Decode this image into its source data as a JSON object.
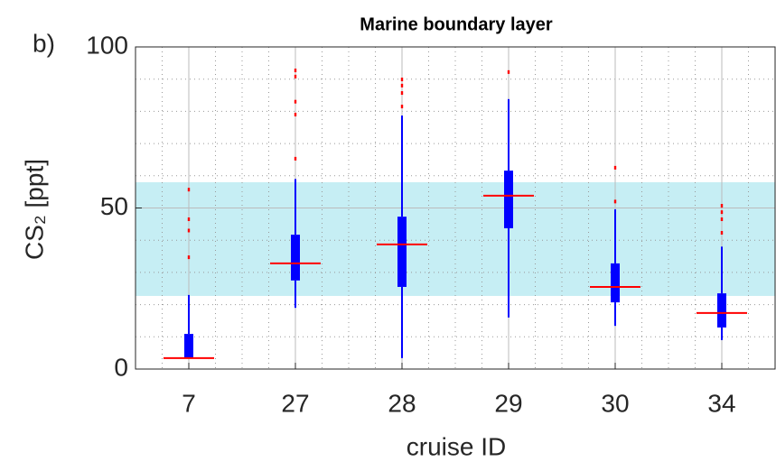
{
  "chart_data": {
    "type": "box",
    "panel_label": "b)",
    "title": "Marine boundary layer",
    "xlabel": "cruise ID",
    "ylabel": "CS₂ [ppt]",
    "categories": [
      "7",
      "27",
      "28",
      "29",
      "30",
      "34"
    ],
    "boxes": [
      {
        "whisker_low": 3.4,
        "q1": 3.4,
        "median": 3.4,
        "q3": 10.9,
        "whisker_high": 23,
        "outliers": [
          34.7,
          43,
          46.5,
          55.7
        ]
      },
      {
        "whisker_low": 19,
        "q1": 27.5,
        "median": 32.8,
        "q3": 41.7,
        "whisker_high": 59,
        "outliers": [
          65.3,
          79,
          83,
          90.8,
          92.7
        ]
      },
      {
        "whisker_low": 3.4,
        "q1": 25.5,
        "median": 38.7,
        "q3": 47.3,
        "whisker_high": 78.7,
        "outliers": [
          81.5,
          85.7,
          88,
          89.9
        ]
      },
      {
        "whisker_low": 16,
        "q1": 43.7,
        "median": 53.8,
        "q3": 61.6,
        "whisker_high": 83.8,
        "outliers": [
          92.2
        ]
      },
      {
        "whisker_low": 13.4,
        "q1": 20.7,
        "median": 25.5,
        "q3": 32.8,
        "whisker_high": 49.6,
        "outliers": [
          52,
          62.5
        ]
      },
      {
        "whisker_low": 9,
        "q1": 12.9,
        "median": 17.4,
        "q3": 23.5,
        "whisker_high": 38,
        "outliers": [
          42.3,
          46.5,
          48.7,
          50.7
        ]
      }
    ],
    "box_color": "#0000ff",
    "median_color": "#ff0000",
    "outlier_color": "#ff0000",
    "shaded_range": [
      22.7,
      58
    ],
    "shade_color": "#c6eef4",
    "ylim": [
      0,
      100
    ],
    "yticks": [
      0,
      50,
      100
    ],
    "grid": true,
    "minor_grid": true
  }
}
